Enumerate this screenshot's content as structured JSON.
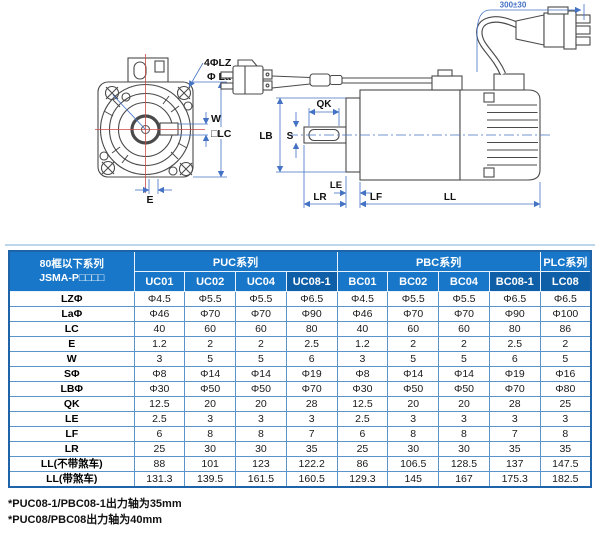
{
  "colors": {
    "header_blue": "#1877c9",
    "header_blue_dark": "#0f5fa8",
    "grid_blue": "#5b94c8",
    "table_border": "#1f64a8",
    "dim_blue": "#4472c4",
    "centerline_red": "#cc4a4a",
    "rule_blue": "#bcd6ec",
    "outline": "#4a4a4a"
  },
  "diagram": {
    "front": {
      "bolt_label": "4ΦLZ",
      "pilot_label": "Φ La",
      "key_width_label": "W",
      "frame_label": "□LC",
      "offset_label": "E"
    },
    "side": {
      "key_len_label": "QK",
      "shaft_label": "S",
      "pilot_label": "LB",
      "le_label": "LE",
      "lr_label": "LR",
      "lf_label": "LF",
      "ll_label": "LL",
      "cable_label": "300±30"
    }
  },
  "table": {
    "corner": {
      "line1": "80框以下系列",
      "line2": "JSMA-P□□□□"
    },
    "groups": [
      {
        "label": "PUC系列",
        "span": 4,
        "dark": false
      },
      {
        "label": "PBC系列",
        "span": 4,
        "dark": false
      },
      {
        "label": "PLC系列",
        "span": 1,
        "dark": false
      }
    ],
    "columns": [
      {
        "label": "UC01",
        "dark": false
      },
      {
        "label": "UC02",
        "dark": false
      },
      {
        "label": "UC04",
        "dark": false
      },
      {
        "label": "UC08-1",
        "dark": true
      },
      {
        "label": "BC01",
        "dark": false
      },
      {
        "label": "BC02",
        "dark": false
      },
      {
        "label": "BC04",
        "dark": false
      },
      {
        "label": "BC08-1",
        "dark": true
      },
      {
        "label": "LC08",
        "dark": true
      }
    ],
    "rows": [
      {
        "label": "LZΦ",
        "values": [
          "Φ4.5",
          "Φ5.5",
          "Φ5.5",
          "Φ6.5",
          "Φ4.5",
          "Φ5.5",
          "Φ5.5",
          "Φ6.5",
          "Φ6.5"
        ]
      },
      {
        "label": "LaΦ",
        "values": [
          "Φ46",
          "Φ70",
          "Φ70",
          "Φ90",
          "Φ46",
          "Φ70",
          "Φ70",
          "Φ90",
          "Φ100"
        ]
      },
      {
        "label": "LC",
        "values": [
          "40",
          "60",
          "60",
          "80",
          "40",
          "60",
          "60",
          "80",
          "86"
        ]
      },
      {
        "label": "E",
        "values": [
          "1.2",
          "2",
          "2",
          "2.5",
          "1.2",
          "2",
          "2",
          "2.5",
          "2"
        ]
      },
      {
        "label": "W",
        "values": [
          "3",
          "5",
          "5",
          "6",
          "3",
          "5",
          "5",
          "6",
          "5"
        ]
      },
      {
        "label": "SΦ",
        "values": [
          "Φ8",
          "Φ14",
          "Φ14",
          "Φ19",
          "Φ8",
          "Φ14",
          "Φ14",
          "Φ19",
          "Φ16"
        ]
      },
      {
        "label": "LBΦ",
        "values": [
          "Φ30",
          "Φ50",
          "Φ50",
          "Φ70",
          "Φ30",
          "Φ50",
          "Φ50",
          "Φ70",
          "Φ80"
        ]
      },
      {
        "label": "QK",
        "values": [
          "12.5",
          "20",
          "20",
          "28",
          "12.5",
          "20",
          "20",
          "28",
          "25"
        ]
      },
      {
        "label": "LE",
        "values": [
          "2.5",
          "3",
          "3",
          "3",
          "2.5",
          "3",
          "3",
          "3",
          "3"
        ]
      },
      {
        "label": "LF",
        "values": [
          "6",
          "8",
          "8",
          "7",
          "6",
          "8",
          "8",
          "7",
          "8"
        ]
      },
      {
        "label": "LR",
        "values": [
          "25",
          "30",
          "30",
          "35",
          "25",
          "30",
          "30",
          "35",
          "35"
        ]
      },
      {
        "label": "LL(不带煞车)",
        "values": [
          "88",
          "101",
          "123",
          "122.2",
          "86",
          "106.5",
          "128.5",
          "137",
          "147.5"
        ]
      },
      {
        "label": "LL(带煞车)",
        "values": [
          "131.3",
          "139.5",
          "161.5",
          "160.5",
          "129.3",
          "145",
          "167",
          "175.3",
          "182.5"
        ]
      }
    ]
  },
  "footnotes": [
    "*PUC08-1/PBC08-1出力轴为35mm",
    "*PUC08/PBC08出力轴为40mm"
  ]
}
